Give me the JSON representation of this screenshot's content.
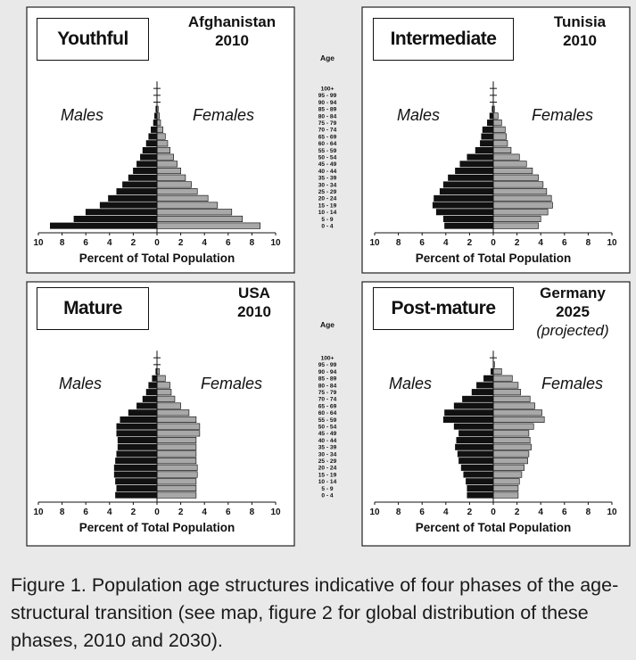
{
  "caption": "Figure 1.  Population age structures indicative of four phases of the age-structural transition (see map, figure 2 for global distribution of these phases, 2010 and 2030).",
  "colors": {
    "males": "#111111",
    "females": "#a8a8a8",
    "panel": "#ffffff",
    "background": "#e9e9e9"
  },
  "chart_data": [
    {
      "type": "bar",
      "title": "Youthful",
      "country": "Afghanistan",
      "year": "2010",
      "projected": "",
      "xlabel": "Percent of Total Population",
      "ylabel": "Age",
      "xlim": [
        0,
        10
      ],
      "xticks": [
        "10",
        "8",
        "6",
        "4",
        "2",
        "0",
        "2",
        "4",
        "6",
        "8",
        "10"
      ],
      "categories": [
        "100+",
        "95 - 99",
        "90 - 94",
        "85 - 89",
        "80 - 84",
        "75 - 79",
        "70 - 74",
        "65 - 69",
        "60 - 64",
        "55 - 59",
        "50 - 54",
        "45 - 49",
        "40 - 44",
        "35 - 39",
        "30 - 34",
        "25 - 29",
        "20 - 24",
        "15 - 19",
        "10 - 14",
        "5 - 9",
        "0 - 4"
      ],
      "series": [
        {
          "name": "Males",
          "values": [
            0,
            0,
            0,
            0.1,
            0.2,
            0.3,
            0.5,
            0.7,
            0.9,
            1.2,
            1.4,
            1.7,
            2.0,
            2.4,
            2.9,
            3.4,
            4.1,
            4.8,
            6.0,
            7.0,
            9.0
          ]
        },
        {
          "name": "Females",
          "values": [
            0,
            0,
            0,
            0.1,
            0.2,
            0.3,
            0.5,
            0.7,
            0.9,
            1.1,
            1.4,
            1.7,
            2.0,
            2.4,
            2.9,
            3.4,
            4.3,
            5.1,
            6.3,
            7.2,
            8.7
          ]
        }
      ]
    },
    {
      "type": "bar",
      "title": "Intermediate",
      "country": "Tunisia",
      "year": "2010",
      "projected": "",
      "xlabel": "Percent of Total Population",
      "ylabel": "Age",
      "xlim": [
        0,
        10
      ],
      "xticks": [
        "10",
        "8",
        "6",
        "4",
        "2",
        "0",
        "2",
        "4",
        "6",
        "8",
        "10"
      ],
      "categories": [
        "100+",
        "95 - 99",
        "90 - 94",
        "85 - 89",
        "80 - 84",
        "75 - 79",
        "70 - 74",
        "65 - 69",
        "60 - 64",
        "55 - 59",
        "50 - 54",
        "45 - 49",
        "40 - 44",
        "35 - 39",
        "30 - 34",
        "25 - 29",
        "20 - 24",
        "15 - 19",
        "10 - 14",
        "5 - 9",
        "0 - 4"
      ],
      "series": [
        {
          "name": "Males",
          "values": [
            0,
            0,
            0,
            0.1,
            0.3,
            0.5,
            0.9,
            1.0,
            1.1,
            1.5,
            2.2,
            2.8,
            3.2,
            3.8,
            4.2,
            4.5,
            5.0,
            5.1,
            4.8,
            4.2,
            4.1
          ]
        },
        {
          "name": "Females",
          "values": [
            0,
            0,
            0,
            0.1,
            0.4,
            0.7,
            1.0,
            1.1,
            1.2,
            1.5,
            2.2,
            2.8,
            3.3,
            3.8,
            4.2,
            4.5,
            4.9,
            5.0,
            4.6,
            4.0,
            3.8
          ]
        }
      ]
    },
    {
      "type": "bar",
      "title": "Mature",
      "country": "USA",
      "year": "2010",
      "projected": "",
      "xlabel": "Percent of Total Population",
      "ylabel": "Age",
      "xlim": [
        0,
        10
      ],
      "xticks": [
        "10",
        "8",
        "6",
        "4",
        "2",
        "0",
        "2",
        "4",
        "6",
        "8",
        "10"
      ],
      "categories": [
        "100+",
        "95 - 99",
        "90 - 94",
        "85 - 89",
        "80 - 84",
        "75 - 79",
        "70 - 74",
        "65 - 69",
        "60 - 64",
        "55 - 59",
        "50 - 54",
        "45 - 49",
        "40 - 44",
        "35 - 39",
        "30 - 34",
        "25 - 29",
        "20 - 24",
        "15 - 19",
        "10 - 14",
        "5 - 9",
        "0 - 4"
      ],
      "series": [
        {
          "name": "Males",
          "values": [
            0,
            0,
            0.1,
            0.4,
            0.7,
            0.9,
            1.2,
            1.7,
            2.4,
            3.1,
            3.4,
            3.4,
            3.3,
            3.3,
            3.4,
            3.5,
            3.6,
            3.6,
            3.5,
            3.4,
            3.5
          ]
        },
        {
          "name": "Females",
          "values": [
            0,
            0,
            0.2,
            0.7,
            1.1,
            1.2,
            1.5,
            2.0,
            2.7,
            3.3,
            3.6,
            3.6,
            3.3,
            3.3,
            3.3,
            3.3,
            3.4,
            3.4,
            3.3,
            3.3,
            3.3
          ]
        }
      ]
    },
    {
      "type": "bar",
      "title": "Post-mature",
      "country": "Germany",
      "year": "2025",
      "projected": "(projected)",
      "xlabel": "Percent of Total Population",
      "ylabel": "Age",
      "xlim": [
        0,
        10
      ],
      "xticks": [
        "10",
        "8",
        "6",
        "4",
        "2",
        "0",
        "2",
        "4",
        "6",
        "8",
        "10"
      ],
      "categories": [
        "100+",
        "95 - 99",
        "90 - 94",
        "85 - 89",
        "80 - 84",
        "75 - 79",
        "70 - 74",
        "65 - 69",
        "60 - 64",
        "55 - 59",
        "50 - 54",
        "45 - 49",
        "40 - 44",
        "35 - 39",
        "30 - 34",
        "25 - 29",
        "20 - 24",
        "15 - 19",
        "10 - 14",
        "5 - 9",
        "0 - 4"
      ],
      "series": [
        {
          "name": "Males",
          "values": [
            0,
            0,
            0.2,
            0.8,
            1.4,
            1.8,
            2.6,
            3.3,
            4.1,
            4.2,
            3.3,
            2.9,
            3.1,
            3.2,
            3.0,
            2.9,
            2.7,
            2.5,
            2.3,
            2.2,
            2.2
          ]
        },
        {
          "name": "Females",
          "values": [
            0,
            0.1,
            0.7,
            1.6,
            2.1,
            2.3,
            3.1,
            3.5,
            4.1,
            4.3,
            3.4,
            3.0,
            3.1,
            3.2,
            3.0,
            2.9,
            2.6,
            2.4,
            2.2,
            2.1,
            2.1
          ]
        }
      ]
    }
  ]
}
